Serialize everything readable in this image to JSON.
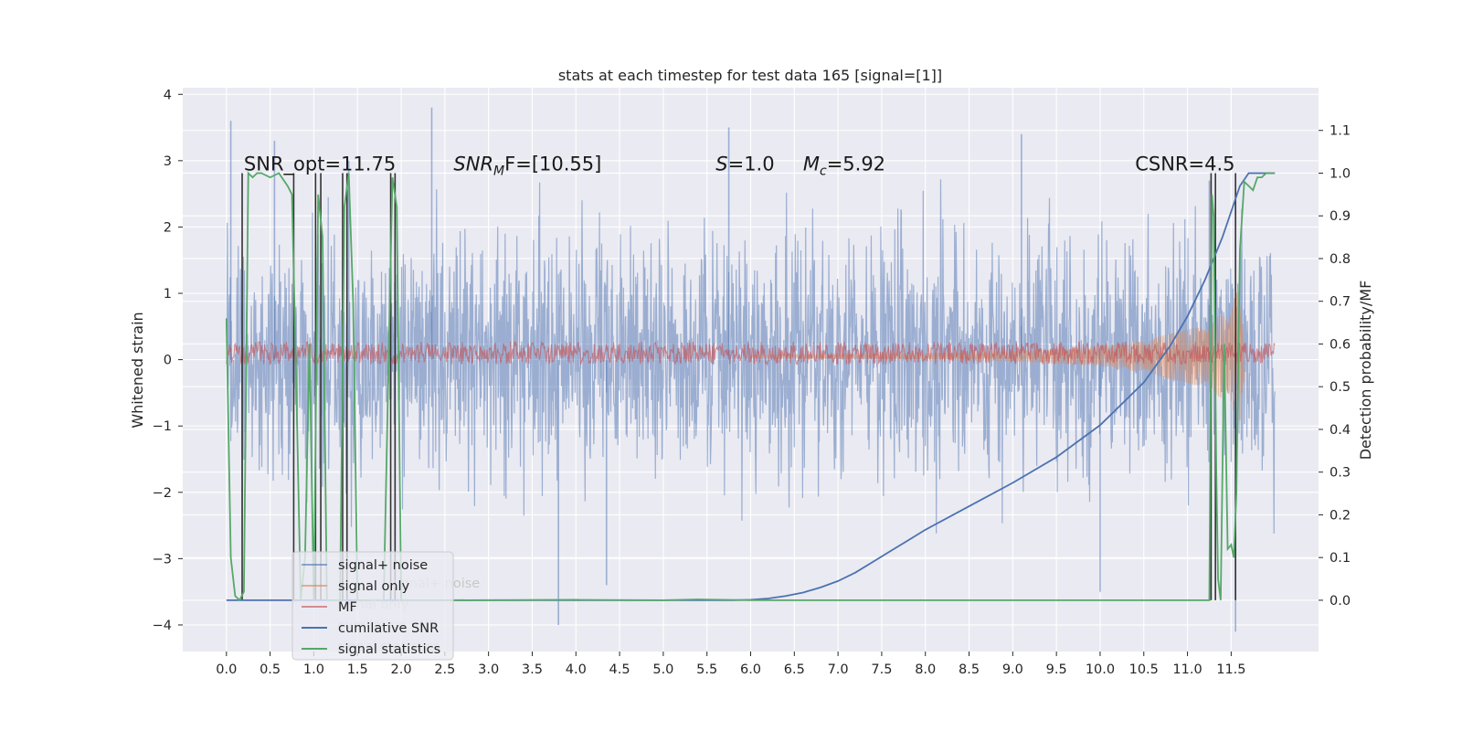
{
  "chart_data": {
    "type": "line",
    "title": "stats at each timestep for test data 165 [signal=[1]]",
    "xlabel": "",
    "ylabel": "Whitened strain",
    "ylabel_right": "Detection probability/MF",
    "xlim": [
      -0.5,
      12.5
    ],
    "ylim": [
      -4.4,
      4.1
    ],
    "ylim_right": [
      -0.12,
      1.2
    ],
    "x_ticks": [
      "0.0",
      "0.5",
      "1.0",
      "1.5",
      "2.0",
      "2.5",
      "3.0",
      "3.5",
      "4.0",
      "4.5",
      "5.0",
      "5.5",
      "6.0",
      "6.5",
      "7.0",
      "7.5",
      "8.0",
      "8.5",
      "9.0",
      "9.5",
      "10.0",
      "10.5",
      "11.0",
      "11.5"
    ],
    "y_ticks": [
      "4",
      "3",
      "2",
      "1",
      "0",
      "−1",
      "−2",
      "−3",
      "−4"
    ],
    "y_ticks_right": [
      "1.1",
      "1.0",
      "0.9",
      "0.8",
      "0.7",
      "0.6",
      "0.5",
      "0.4",
      "0.3",
      "0.2",
      "0.1",
      "0.0"
    ],
    "grid": true,
    "legend_position": "bottom-left",
    "annotations": [
      {
        "text": "SNR_opt=11.75",
        "x": 0.2,
        "y": 2.95
      },
      {
        "text": "CSNR=4.5",
        "x": 10.4,
        "y": 2.95
      }
    ],
    "math_annotations": [
      {
        "base": "SNR",
        "sub": "M",
        "rest": "F=[10.55]",
        "x": 2.6,
        "y": 2.95
      },
      {
        "base": "S",
        "sub": "",
        "rest": "=1.0",
        "x": 5.6,
        "y": 2.95
      },
      {
        "base": "M",
        "sub": "c",
        "rest": "=5.92",
        "x": 6.6,
        "y": 2.95
      }
    ],
    "legend": [
      {
        "label": "signal+ noise",
        "color": "#4c72b0"
      },
      {
        "label": "signal only",
        "color": "#dd8452"
      },
      {
        "label": "MF",
        "color": "#c44e52"
      },
      {
        "label": "cumilative SNR",
        "color": "#4c72b0"
      },
      {
        "label": "signal statistics",
        "color": "#55a868"
      }
    ],
    "ghost_legend": [
      "signal+ noise",
      "signal only",
      "cumilative SNR",
      "signal statistics"
    ],
    "series": [
      {
        "name": "signal+ noise",
        "axis": "left",
        "color": "#4c72b0",
        "opacity": 0.5,
        "x_range": [
          0.0,
          12.0
        ],
        "envelope": [
          [
            0.0,
            2.3
          ],
          [
            6.0,
            2.3
          ],
          [
            12.0,
            2.3
          ]
        ],
        "note": "dense white noise"
      },
      {
        "name": "signal only",
        "axis": "left",
        "color": "#dd8452",
        "x_range": [
          6.0,
          11.65
        ],
        "envelope": [
          [
            6.0,
            0.02
          ],
          [
            8.0,
            0.05
          ],
          [
            9.0,
            0.08
          ],
          [
            10.0,
            0.15
          ],
          [
            10.5,
            0.25
          ],
          [
            11.0,
            0.4
          ],
          [
            11.3,
            0.55
          ],
          [
            11.5,
            0.75
          ],
          [
            11.6,
            1.1
          ],
          [
            11.65,
            0.4
          ]
        ]
      },
      {
        "name": "MF",
        "axis": "left",
        "color": "#c44e52",
        "x_range": [
          0.0,
          12.0
        ],
        "center": 0.1,
        "band": 0.17
      },
      {
        "name": "cumilative SNR",
        "axis": "right",
        "color": "#4c72b0",
        "x": [
          0.0,
          5.8,
          6.0,
          6.2,
          6.4,
          6.6,
          6.8,
          7.0,
          7.2,
          7.4,
          7.6,
          7.8,
          8.0,
          8.5,
          9.0,
          9.5,
          10.0,
          10.5,
          10.8,
          11.0,
          11.2,
          11.4,
          11.6,
          11.7,
          12.0
        ],
        "y": [
          0.0,
          0.0,
          0.001,
          0.004,
          0.01,
          0.018,
          0.03,
          0.045,
          0.065,
          0.09,
          0.115,
          0.14,
          0.165,
          0.22,
          0.275,
          0.335,
          0.41,
          0.51,
          0.595,
          0.665,
          0.75,
          0.85,
          0.97,
          1.0,
          1.0
        ]
      },
      {
        "name": "signal statistics",
        "axis": "right",
        "color": "#55a868",
        "x": [
          0.0,
          0.05,
          0.1,
          0.15,
          0.2,
          0.25,
          0.3,
          0.35,
          0.4,
          0.5,
          0.6,
          0.7,
          0.75,
          0.8,
          0.85,
          0.9,
          0.95,
          1.0,
          1.05,
          1.1,
          1.15,
          1.2,
          1.25,
          1.3,
          1.35,
          1.4,
          1.45,
          1.5,
          1.55,
          1.6,
          1.7,
          1.8,
          1.85,
          1.9,
          1.95,
          2.0,
          2.05,
          2.1,
          2.5,
          4.0,
          5.0,
          5.4,
          6.0,
          11.0,
          11.25,
          11.28,
          11.3,
          11.33,
          11.35,
          11.38,
          11.42,
          11.46,
          11.5,
          11.53,
          11.56,
          11.6,
          11.65,
          11.7,
          11.75,
          11.8,
          11.85,
          11.9,
          12.0
        ],
        "y": [
          0.66,
          0.1,
          0.01,
          0.0,
          0.02,
          1.0,
          0.99,
          1.0,
          1.0,
          0.99,
          1.0,
          0.97,
          0.95,
          0.5,
          0.0,
          0.1,
          0.6,
          0.0,
          0.95,
          0.85,
          0.0,
          0.0,
          0.0,
          0.0,
          0.92,
          1.0,
          0.7,
          0.0,
          0.0,
          0.0,
          0.0,
          0.0,
          0.5,
          0.99,
          0.92,
          0.0,
          0.0,
          0.0,
          0.0,
          0.001,
          0.0,
          0.002,
          0.0,
          0.0,
          0.0,
          0.95,
          0.9,
          0.3,
          0.05,
          0.0,
          0.6,
          0.12,
          0.13,
          0.1,
          0.25,
          0.82,
          0.98,
          0.97,
          0.96,
          0.99,
          0.99,
          1.0,
          1.0
        ]
      }
    ],
    "vertical_lines": {
      "color": "#333333",
      "x": [
        0.18,
        0.77,
        1.02,
        1.08,
        1.33,
        1.38,
        1.88,
        1.93,
        11.27,
        11.32,
        11.55
      ]
    },
    "raw_bars": {
      "color": "#4c72b0",
      "x": [
        0.05,
        0.55,
        1.4,
        2.35,
        3.8,
        4.35,
        5.75,
        9.1,
        10.0,
        11.25,
        11.55
      ],
      "y": [
        3.6,
        3.3,
        3.0,
        3.8,
        -4.0,
        -3.4,
        3.5,
        3.4,
        -3.5,
        2.7,
        -4.1
      ]
    }
  }
}
